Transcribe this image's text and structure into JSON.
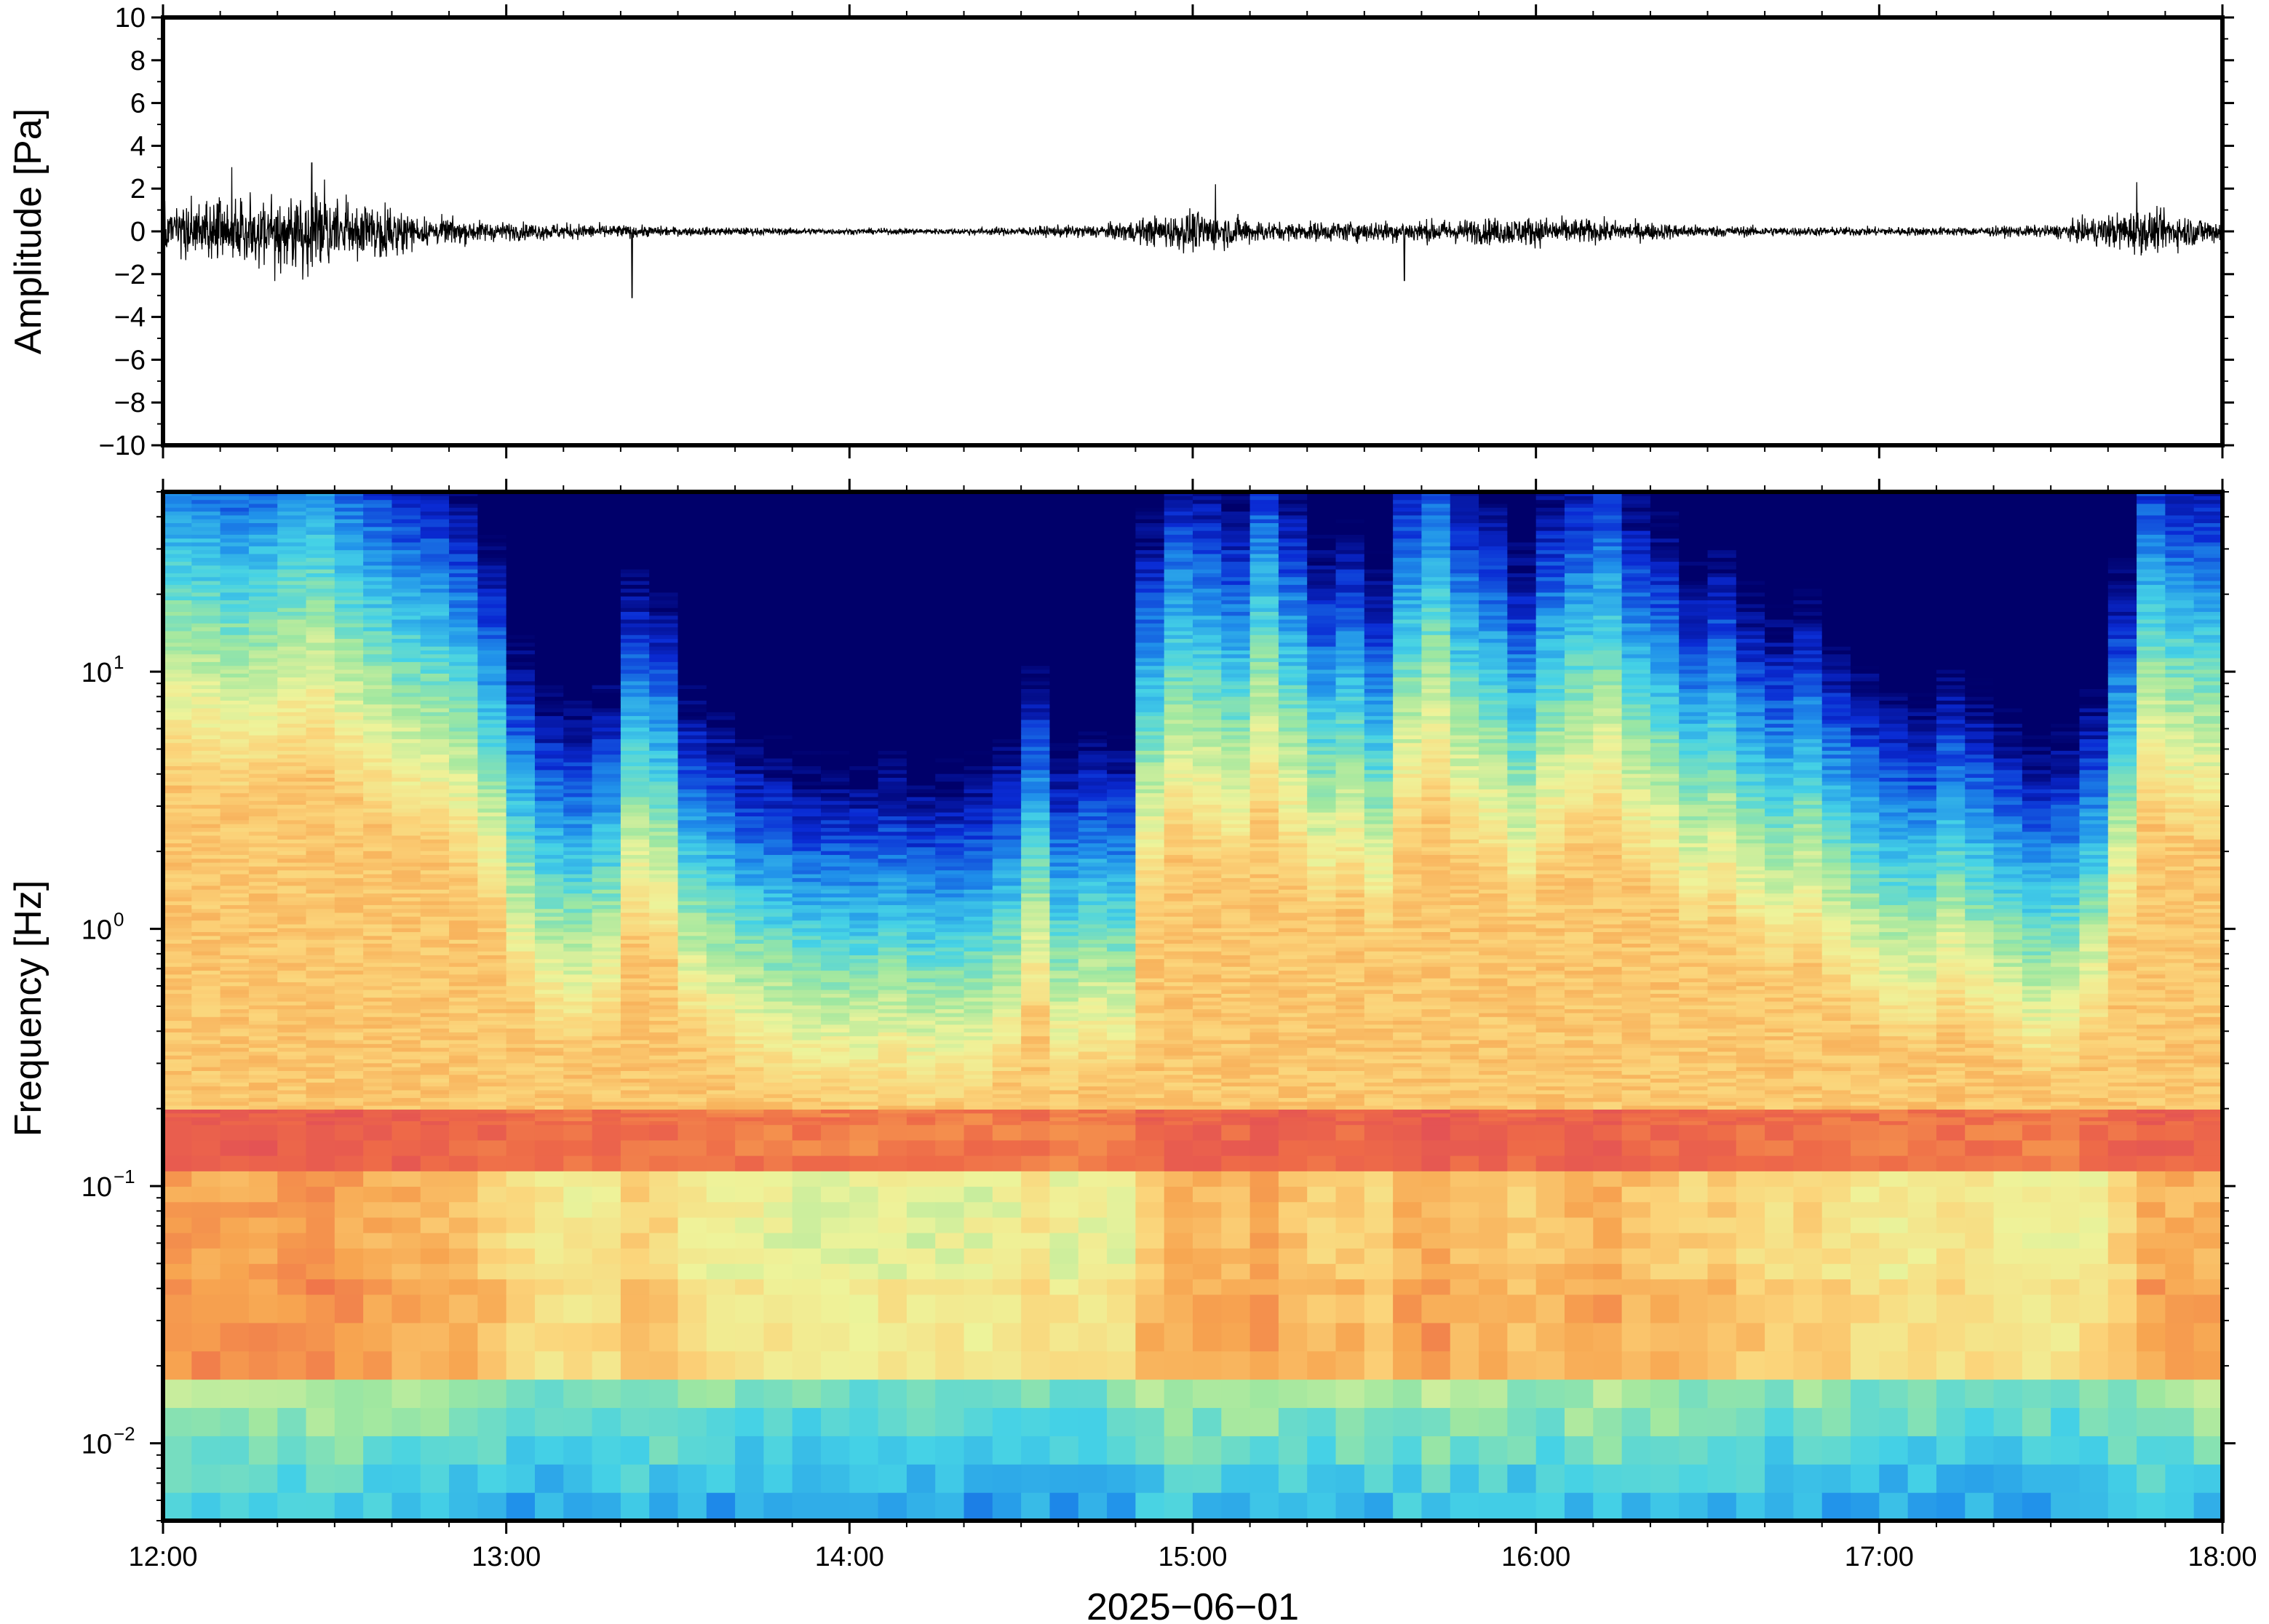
{
  "chart_data": [
    {
      "type": "line",
      "panel": "waveform",
      "ylabel": "Amplitude [Pa]",
      "ylim": [
        -10,
        10
      ],
      "yticks": [
        10,
        8,
        6,
        4,
        2,
        0,
        -2,
        -4,
        -6,
        -8,
        -10
      ],
      "ytick_labels": [
        "10",
        "8",
        "6",
        "4",
        "2",
        "0",
        "−2",
        "−4",
        "−6",
        "−8",
        "−10"
      ],
      "x_range": [
        "12:00",
        "18:00"
      ],
      "grid": false,
      "series": [
        {
          "x": [
            "12:00",
            "12:15",
            "12:30",
            "12:45",
            "13:00",
            "13:15",
            "13:30",
            "13:45",
            "14:00",
            "14:15",
            "14:30",
            "14:45",
            "15:00",
            "15:15",
            "15:30",
            "15:45",
            "16:00",
            "16:15",
            "16:30",
            "16:45",
            "17:00",
            "17:15",
            "17:30",
            "17:45",
            "18:00"
          ],
          "envelope_pa": [
            1.5,
            2.6,
            2.4,
            1.0,
            0.6,
            0.5,
            0.3,
            0.25,
            0.2,
            0.2,
            0.3,
            0.5,
            1.4,
            0.6,
            0.7,
            0.8,
            1.0,
            0.7,
            0.4,
            0.3,
            0.3,
            0.3,
            0.4,
            1.5,
            0.8
          ]
        }
      ],
      "annotations": [
        {
          "time": "12:12",
          "peak_pa": 3.0
        },
        {
          "time": "12:26",
          "peak_pa": 3.2
        },
        {
          "time": "13:22",
          "peak_pa": -3.1
        },
        {
          "time": "15:04",
          "peak_pa": 2.2
        },
        {
          "time": "15:37",
          "peak_pa": -2.3
        },
        {
          "time": "17:45",
          "peak_pa": 2.3
        }
      ]
    },
    {
      "type": "heatmap",
      "panel": "spectrogram",
      "ylabel": "Frequency [Hz]",
      "xlabel": "2025−06−01",
      "x_tick_labels": [
        "12:00",
        "13:00",
        "14:00",
        "15:00",
        "16:00",
        "17:00",
        "18:00"
      ],
      "y_scale": "log",
      "ylim": [
        0.005,
        50
      ],
      "yticks": [
        0.01,
        0.1,
        1,
        10
      ],
      "ytick_labels": [
        {
          "base": "10",
          "exp": "−2"
        },
        {
          "base": "10",
          "exp": "−1"
        },
        {
          "base": "10",
          "exp": "0"
        },
        {
          "base": "10",
          "exp": "1"
        }
      ],
      "colormap": "jet",
      "colormap_stops": [
        "#00006a",
        "#0a2bd4",
        "#1f8fea",
        "#45d2e6",
        "#9fe7a0",
        "#eef39a",
        "#fbd47a",
        "#f7a550",
        "#ee6a48",
        "#e04a58"
      ],
      "n_time_bins": 72,
      "time_activity": [
        0.95,
        0.93,
        0.9,
        0.92,
        0.96,
        0.98,
        0.9,
        0.85,
        0.8,
        0.78,
        0.72,
        0.6,
        0.4,
        0.3,
        0.28,
        0.32,
        0.55,
        0.5,
        0.3,
        0.25,
        0.2,
        0.18,
        0.15,
        0.15,
        0.14,
        0.16,
        0.13,
        0.14,
        0.15,
        0.2,
        0.35,
        0.18,
        0.22,
        0.2,
        0.65,
        0.78,
        0.75,
        0.7,
        0.85,
        0.72,
        0.6,
        0.65,
        0.55,
        0.8,
        0.88,
        0.75,
        0.7,
        0.6,
        0.72,
        0.78,
        0.82,
        0.7,
        0.65,
        0.55,
        0.6,
        0.5,
        0.45,
        0.5,
        0.4,
        0.35,
        0.3,
        0.28,
        0.35,
        0.3,
        0.25,
        0.2,
        0.22,
        0.3,
        0.55,
        0.85,
        0.8,
        0.78
      ],
      "microseism_band_hz": [
        0.12,
        0.25
      ]
    }
  ]
}
